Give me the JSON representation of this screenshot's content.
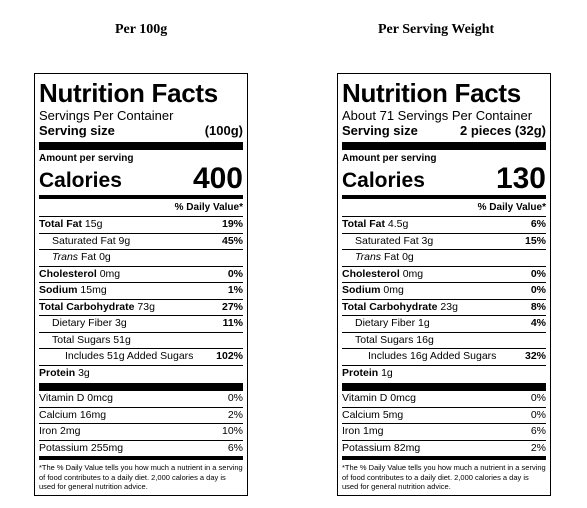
{
  "headings": {
    "left": "Per 100g",
    "right": "Per Serving Weight"
  },
  "labels": [
    {
      "title": "Nutrition Facts",
      "servings_per_container": "Servings Per Container",
      "serving_size_label": "Serving size",
      "serving_size_value": "(100g)",
      "amount_per_serving": "Amount per serving",
      "calories_label": "Calories",
      "calories_value": "400",
      "dv_header": "% Daily Value*",
      "nutrients": {
        "total_fat": {
          "name": "Total Fat",
          "amount": "15g",
          "dv": "19%"
        },
        "saturated_fat": {
          "name": "Saturated Fat",
          "amount": "9g",
          "dv": "45%"
        },
        "trans_fat": {
          "name": "Trans",
          "rest": "Fat 0g"
        },
        "cholesterol": {
          "name": "Cholesterol",
          "amount": "0mg",
          "dv": "0%"
        },
        "sodium": {
          "name": "Sodium",
          "amount": "15mg",
          "dv": "1%"
        },
        "total_carb": {
          "name": "Total Carbohydrate",
          "amount": "73g",
          "dv": "27%"
        },
        "fiber": {
          "name": "Dietary Fiber",
          "amount": "3g",
          "dv": "11%"
        },
        "total_sugars": {
          "text": "Total Sugars 51g"
        },
        "added_sugars": {
          "text": "Includes 51g Added Sugars",
          "dv": "102%"
        },
        "protein": {
          "name": "Protein",
          "amount": "3g"
        }
      },
      "vitamins": [
        {
          "text": "Vitamin D 0mcg",
          "dv": "0%"
        },
        {
          "text": "Calcium 16mg",
          "dv": "2%"
        },
        {
          "text": "Iron 2mg",
          "dv": "10%"
        },
        {
          "text": "Potassium 255mg",
          "dv": "6%"
        }
      ],
      "footnote": "*The % Daily Value tells you how much a nutrient in a serving of food contributes to a daily diet. 2,000 calories a day is used for general nutrition advice."
    },
    {
      "title": "Nutrition Facts",
      "servings_per_container": "About 71 Servings Per Container",
      "serving_size_label": "Serving size",
      "serving_size_value": "2 pieces (32g)",
      "amount_per_serving": "Amount per serving",
      "calories_label": "Calories",
      "calories_value": "130",
      "dv_header": "% Daily Value*",
      "nutrients": {
        "total_fat": {
          "name": "Total Fat",
          "amount": "4.5g",
          "dv": "6%"
        },
        "saturated_fat": {
          "name": "Saturated Fat",
          "amount": "3g",
          "dv": "15%"
        },
        "trans_fat": {
          "name": "Trans",
          "rest": "Fat 0g"
        },
        "cholesterol": {
          "name": "Cholesterol",
          "amount": "0mg",
          "dv": "0%"
        },
        "sodium": {
          "name": "Sodium",
          "amount": "0mg",
          "dv": "0%"
        },
        "total_carb": {
          "name": "Total Carbohydrate",
          "amount": "23g",
          "dv": "8%"
        },
        "fiber": {
          "name": "Dietary Fiber",
          "amount": "1g",
          "dv": "4%"
        },
        "total_sugars": {
          "text": "Total Sugars 16g"
        },
        "added_sugars": {
          "text": "Includes 16g Added Sugars",
          "dv": "32%"
        },
        "protein": {
          "name": "Protein",
          "amount": "1g"
        }
      },
      "vitamins": [
        {
          "text": "Vitamin D 0mcg",
          "dv": "0%"
        },
        {
          "text": "Calcium 5mg",
          "dv": "0%"
        },
        {
          "text": "Iron 1mg",
          "dv": "6%"
        },
        {
          "text": "Potassium 82mg",
          "dv": "2%"
        }
      ],
      "footnote": "*The % Daily Value tells you how much a nutrient in a serving of food contributes to a daily diet. 2,000 calories a day is used for general nutrition advice."
    }
  ]
}
